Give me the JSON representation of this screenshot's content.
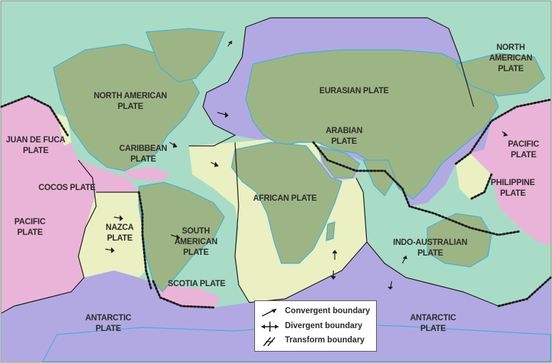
{
  "map": {
    "plates": [
      {
        "id": "north-american-plate",
        "label": "NORTH AMERICAN\nPLATE"
      },
      {
        "id": "north-american-plate-east",
        "label": "NORTH\nAMERICAN\nPLATE"
      },
      {
        "id": "eurasian-plate",
        "label": "EURASIAN PLATE"
      },
      {
        "id": "arabian-plate",
        "label": "ARABIAN\nPLATE"
      },
      {
        "id": "juan-de-fuca-plate",
        "label": "JUAN DE FUCA\nPLATE"
      },
      {
        "id": "caribbean-plate",
        "label": "CARIBBEAN\nPLATE"
      },
      {
        "id": "pacific-plate-east",
        "label": "PACIFIC\nPLATE"
      },
      {
        "id": "philippine-plate",
        "label": "PHILIPPINE\nPLATE"
      },
      {
        "id": "cocos-plate",
        "label": "COCOS PLATE"
      },
      {
        "id": "african-plate",
        "label": "AFRICAN PLATE"
      },
      {
        "id": "pacific-plate-west",
        "label": "PACIFIC\nPLATE"
      },
      {
        "id": "nazca-plate",
        "label": "NAZCA\nPLATE"
      },
      {
        "id": "south-american-plate",
        "label": "SOUTH\nAMERICAN\nPLATE"
      },
      {
        "id": "indo-australian-plate",
        "label": "INDO-AUSTRALIAN\nPLATE"
      },
      {
        "id": "scotia-plate",
        "label": "SCOTIA PLATE"
      },
      {
        "id": "antarctic-plate-west",
        "label": "ANTARCTIC\nPLATE"
      },
      {
        "id": "antarctic-plate-east",
        "label": "ANTARCTIC\nPLATE"
      }
    ],
    "colors": {
      "north_american": "#a9dcc6",
      "eurasian": "#b2a9e3",
      "pacific": "#e9b4d8",
      "african": "#eaf0c1",
      "indo_australian": "#a9dcc6",
      "antarctic": "#b2a9e3",
      "land": "#9db585",
      "coast": "#3fb2d8",
      "boundary": "#1a1a1a"
    }
  },
  "legend": {
    "items": [
      {
        "id": "convergent",
        "label": "Convergent boundary",
        "icon": "convergent-boundary-icon"
      },
      {
        "id": "divergent",
        "label": "Divergent boundary",
        "icon": "divergent-boundary-icon"
      },
      {
        "id": "transform",
        "label": "Transform boundary",
        "icon": "transform-boundary-icon"
      }
    ]
  }
}
